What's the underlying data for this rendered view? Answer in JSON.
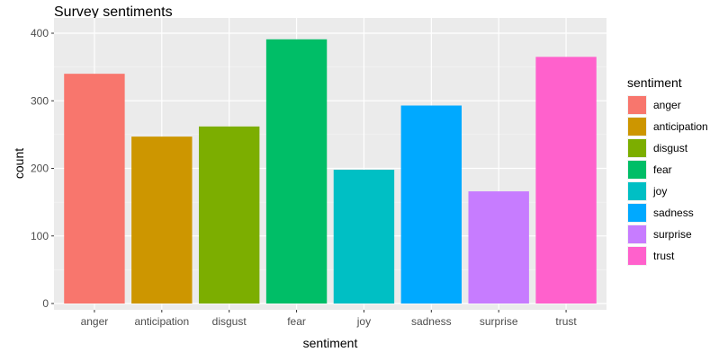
{
  "chart_data": {
    "type": "bar",
    "title": "Survey sentiments",
    "xlabel": "sentiment",
    "ylabel": "count",
    "categories": [
      "anger",
      "anticipation",
      "disgust",
      "fear",
      "joy",
      "sadness",
      "surprise",
      "trust"
    ],
    "values": [
      340,
      247,
      262,
      391,
      198,
      293,
      166,
      365
    ],
    "colors": [
      "#F8766D",
      "#CD9600",
      "#7CAE00",
      "#00BE67",
      "#00BFC4",
      "#00A9FF",
      "#C77CFF",
      "#FF61CC"
    ],
    "ylim": [
      0,
      400
    ],
    "yticks": [
      0,
      100,
      200,
      300,
      400
    ],
    "grid": true,
    "panel_background": "#EBEBEB",
    "grid_color": "#FFFFFF",
    "legend": {
      "title": "sentiment",
      "position": "right",
      "items": [
        "anger",
        "anticipation",
        "disgust",
        "fear",
        "joy",
        "sadness",
        "surprise",
        "trust"
      ]
    }
  }
}
